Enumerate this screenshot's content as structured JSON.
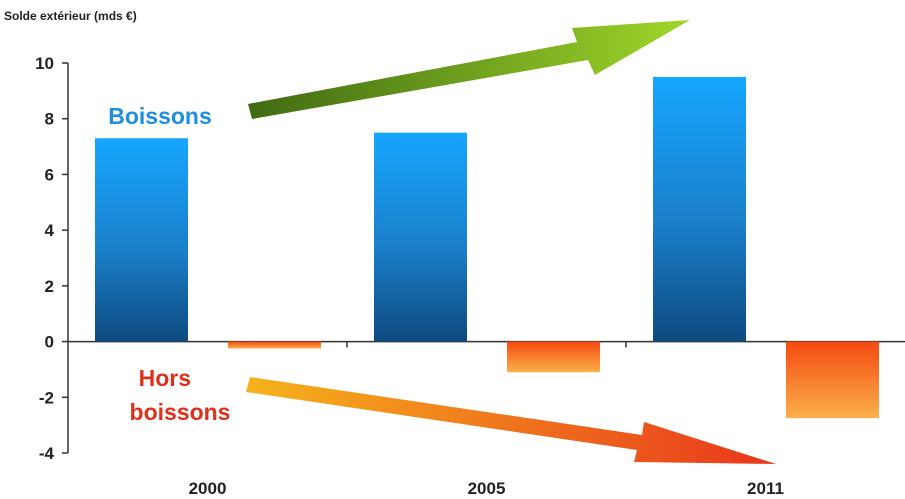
{
  "chart_data": {
    "type": "bar",
    "title": "",
    "ylabel": "Solde extérieur (mds €)",
    "xlabel": "",
    "categories": [
      "2000",
      "2005",
      "2011"
    ],
    "ylim": [
      -4,
      10
    ],
    "yticks": [
      10,
      8,
      6,
      4,
      2,
      0,
      -2,
      -4
    ],
    "grid": false,
    "series": [
      {
        "name": "Boissons",
        "values": [
          7.3,
          7.5,
          9.5
        ],
        "color": "#1e90e6"
      },
      {
        "name": "Hors boissons",
        "values": [
          -0.25,
          -1.1,
          -2.75
        ],
        "color": "#f05a1a"
      }
    ],
    "annotations": [
      {
        "label": "Boissons",
        "color": "#1e8fe0"
      },
      {
        "label": "Hors\nboissons",
        "color": "#e0301a"
      }
    ],
    "arrows": [
      {
        "meaning": "trend up",
        "color": "#8ac42a"
      },
      {
        "meaning": "trend down",
        "color": "#f07020"
      }
    ]
  }
}
